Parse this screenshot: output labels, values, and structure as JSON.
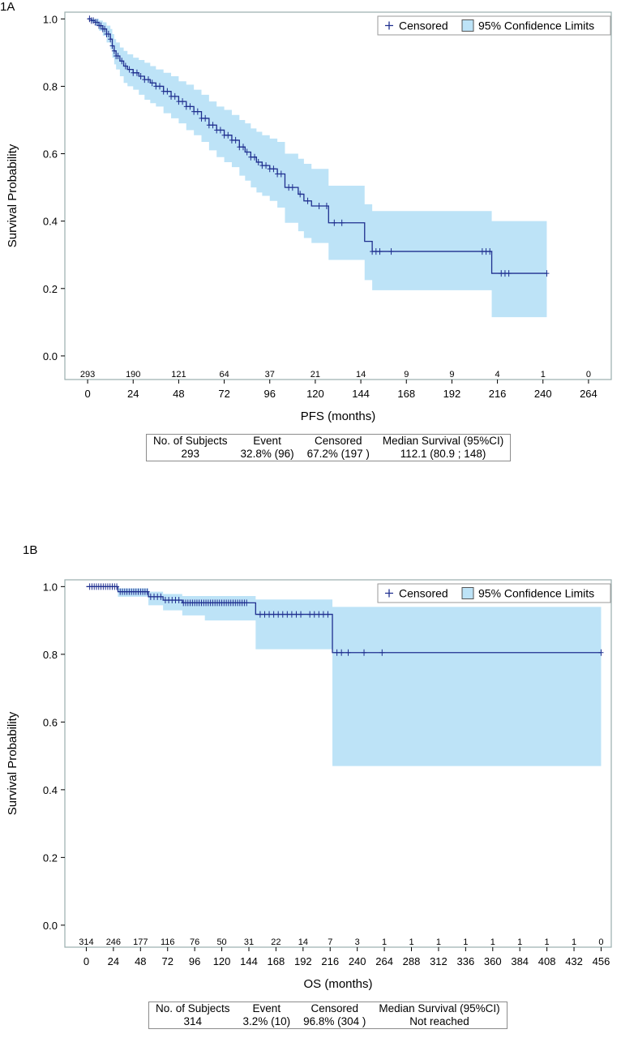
{
  "chart_data": [
    {
      "panel_label": "1A",
      "type": "line",
      "subtype": "kaplan-meier",
      "xlabel": "PFS (months)",
      "ylabel": "Survival Probability",
      "xlim": [
        -12,
        276
      ],
      "ylim": [
        -0.07,
        1.02
      ],
      "xticks": [
        0,
        24,
        48,
        72,
        96,
        120,
        144,
        168,
        192,
        216,
        240,
        264
      ],
      "yticks": [
        "0.0",
        "0.2",
        "0.4",
        "0.6",
        "0.8",
        "1.0"
      ],
      "legend": [
        "Censored",
        "95% Confidence Limits"
      ],
      "legend_position": "top-right",
      "colors": {
        "line": "#1f2f8f",
        "band": "#bde3f7",
        "frame": "#9aaeae"
      },
      "at_risk_times": [
        0,
        24,
        48,
        72,
        96,
        120,
        144,
        168,
        192,
        216,
        240,
        264
      ],
      "at_risk": [
        "293",
        "190",
        "121",
        "64",
        "37",
        "21",
        "14",
        "9",
        "9",
        "4",
        "1",
        "0"
      ],
      "survival_steps": [
        [
          0,
          1.0
        ],
        [
          2,
          0.995
        ],
        [
          4,
          0.99
        ],
        [
          6,
          0.98
        ],
        [
          8,
          0.97
        ],
        [
          10,
          0.955
        ],
        [
          12,
          0.94
        ],
        [
          13,
          0.92
        ],
        [
          14,
          0.905
        ],
        [
          15,
          0.89
        ],
        [
          17,
          0.875
        ],
        [
          19,
          0.86
        ],
        [
          21,
          0.85
        ],
        [
          24,
          0.84
        ],
        [
          27,
          0.83
        ],
        [
          30,
          0.82
        ],
        [
          33,
          0.81
        ],
        [
          36,
          0.8
        ],
        [
          40,
          0.785
        ],
        [
          44,
          0.77
        ],
        [
          48,
          0.755
        ],
        [
          52,
          0.74
        ],
        [
          56,
          0.725
        ],
        [
          60,
          0.705
        ],
        [
          64,
          0.685
        ],
        [
          68,
          0.67
        ],
        [
          72,
          0.655
        ],
        [
          76,
          0.64
        ],
        [
          80,
          0.62
        ],
        [
          83,
          0.605
        ],
        [
          86,
          0.59
        ],
        [
          89,
          0.575
        ],
        [
          92,
          0.565
        ],
        [
          96,
          0.555
        ],
        [
          100,
          0.54
        ],
        [
          104,
          0.5
        ],
        [
          111,
          0.48
        ],
        [
          114,
          0.46
        ],
        [
          118,
          0.445
        ],
        [
          127,
          0.395
        ],
        [
          146,
          0.34
        ],
        [
          150,
          0.31
        ],
        [
          213,
          0.245
        ],
        [
          242,
          0.245
        ]
      ],
      "ci_lower": [
        [
          0,
          1.0
        ],
        [
          2,
          0.99
        ],
        [
          4,
          0.98
        ],
        [
          6,
          0.965
        ],
        [
          8,
          0.95
        ],
        [
          10,
          0.93
        ],
        [
          12,
          0.91
        ],
        [
          13,
          0.885
        ],
        [
          14,
          0.865
        ],
        [
          15,
          0.85
        ],
        [
          17,
          0.83
        ],
        [
          19,
          0.81
        ],
        [
          21,
          0.8
        ],
        [
          24,
          0.79
        ],
        [
          27,
          0.775
        ],
        [
          30,
          0.76
        ],
        [
          33,
          0.75
        ],
        [
          36,
          0.74
        ],
        [
          40,
          0.72
        ],
        [
          44,
          0.705
        ],
        [
          48,
          0.69
        ],
        [
          52,
          0.67
        ],
        [
          56,
          0.655
        ],
        [
          60,
          0.635
        ],
        [
          64,
          0.61
        ],
        [
          68,
          0.59
        ],
        [
          72,
          0.575
        ],
        [
          76,
          0.56
        ],
        [
          80,
          0.535
        ],
        [
          83,
          0.52
        ],
        [
          86,
          0.5
        ],
        [
          89,
          0.485
        ],
        [
          92,
          0.475
        ],
        [
          96,
          0.46
        ],
        [
          100,
          0.44
        ],
        [
          104,
          0.395
        ],
        [
          111,
          0.37
        ],
        [
          114,
          0.35
        ],
        [
          118,
          0.335
        ],
        [
          127,
          0.285
        ],
        [
          146,
          0.225
        ],
        [
          150,
          0.195
        ],
        [
          213,
          0.115
        ],
        [
          242,
          0.115
        ]
      ],
      "ci_upper": [
        [
          0,
          1.0
        ],
        [
          2,
          1.0
        ],
        [
          4,
          1.0
        ],
        [
          6,
          0.995
        ],
        [
          8,
          0.99
        ],
        [
          10,
          0.98
        ],
        [
          12,
          0.97
        ],
        [
          13,
          0.955
        ],
        [
          14,
          0.94
        ],
        [
          15,
          0.93
        ],
        [
          17,
          0.915
        ],
        [
          19,
          0.905
        ],
        [
          21,
          0.895
        ],
        [
          24,
          0.885
        ],
        [
          27,
          0.878
        ],
        [
          30,
          0.87
        ],
        [
          33,
          0.86
        ],
        [
          36,
          0.85
        ],
        [
          40,
          0.84
        ],
        [
          44,
          0.83
        ],
        [
          48,
          0.815
        ],
        [
          52,
          0.805
        ],
        [
          56,
          0.79
        ],
        [
          60,
          0.775
        ],
        [
          64,
          0.755
        ],
        [
          68,
          0.74
        ],
        [
          72,
          0.73
        ],
        [
          76,
          0.715
        ],
        [
          80,
          0.7
        ],
        [
          83,
          0.69
        ],
        [
          86,
          0.675
        ],
        [
          89,
          0.665
        ],
        [
          92,
          0.655
        ],
        [
          96,
          0.645
        ],
        [
          100,
          0.635
        ],
        [
          104,
          0.6
        ],
        [
          111,
          0.585
        ],
        [
          114,
          0.57
        ],
        [
          118,
          0.555
        ],
        [
          127,
          0.505
        ],
        [
          146,
          0.45
        ],
        [
          150,
          0.43
        ],
        [
          213,
          0.4
        ],
        [
          242,
          0.4
        ]
      ],
      "censor_times": [
        1,
        2,
        3,
        4,
        5,
        6,
        7,
        8,
        9,
        10,
        11,
        12,
        13,
        14,
        15,
        16,
        18,
        20,
        22,
        24,
        26,
        28,
        30,
        32,
        34,
        36,
        38,
        40,
        42,
        44,
        46,
        48,
        50,
        52,
        54,
        56,
        58,
        60,
        62,
        64,
        66,
        68,
        70,
        72,
        74,
        76,
        78,
        80,
        82,
        84,
        86,
        88,
        90,
        92,
        94,
        96,
        98,
        100,
        102,
        106,
        108,
        112,
        116,
        122,
        126,
        130,
        134,
        150,
        152,
        154,
        160,
        208,
        210,
        212,
        218,
        220,
        222,
        242
      ],
      "table": {
        "headers": [
          "No. of Subjects",
          "Event",
          "Censored",
          "Median Survival (95%CI)"
        ],
        "values": [
          "293",
          "32.8% (96)",
          "67.2% (197 )",
          "112.1 (80.9 ; 148)"
        ]
      }
    },
    {
      "panel_label": "1B",
      "type": "line",
      "subtype": "kaplan-meier",
      "xlabel": "OS (months)",
      "ylabel": "Survival Probability",
      "xlim": [
        -19,
        465
      ],
      "ylim": [
        -0.065,
        1.02
      ],
      "xticks": [
        0,
        24,
        48,
        72,
        96,
        120,
        144,
        168,
        192,
        216,
        240,
        264,
        288,
        312,
        336,
        360,
        384,
        408,
        432,
        456
      ],
      "yticks": [
        "0.0",
        "0.2",
        "0.4",
        "0.6",
        "0.8",
        "1.0"
      ],
      "legend": [
        "Censored",
        "95% Confidence Limits"
      ],
      "legend_position": "top-right",
      "colors": {
        "line": "#1f2f8f",
        "band": "#bde3f7",
        "frame": "#9aaeae"
      },
      "at_risk_times": [
        0,
        24,
        48,
        72,
        96,
        120,
        144,
        168,
        192,
        216,
        240,
        264,
        288,
        312,
        336,
        360,
        384,
        408,
        432,
        456
      ],
      "at_risk": [
        "314",
        "246",
        "177",
        "116",
        "76",
        "50",
        "31",
        "22",
        "14",
        "7",
        "3",
        "1",
        "1",
        "1",
        "1",
        "1",
        "1",
        "1",
        "1",
        "0"
      ],
      "survival_steps": [
        [
          0,
          1.0
        ],
        [
          28,
          0.985
        ],
        [
          55,
          0.97
        ],
        [
          68,
          0.96
        ],
        [
          85,
          0.952
        ],
        [
          150,
          0.918
        ],
        [
          218,
          0.805
        ],
        [
          456,
          0.805
        ]
      ],
      "ci_lower": [
        [
          0,
          1.0
        ],
        [
          28,
          0.97
        ],
        [
          55,
          0.945
        ],
        [
          68,
          0.93
        ],
        [
          85,
          0.915
        ],
        [
          105,
          0.9
        ],
        [
          150,
          0.815
        ],
        [
          218,
          0.47
        ],
        [
          456,
          0.47
        ]
      ],
      "ci_upper": [
        [
          0,
          1.0
        ],
        [
          28,
          0.995
        ],
        [
          55,
          0.985
        ],
        [
          68,
          0.978
        ],
        [
          85,
          0.972
        ],
        [
          150,
          0.962
        ],
        [
          218,
          0.94
        ],
        [
          456,
          0.94
        ]
      ],
      "censor_times": [
        3,
        5,
        7,
        9,
        11,
        13,
        15,
        17,
        19,
        21,
        23,
        25,
        27,
        30,
        32,
        34,
        36,
        38,
        40,
        42,
        44,
        46,
        48,
        50,
        52,
        54,
        57,
        60,
        63,
        66,
        70,
        73,
        76,
        79,
        82,
        86,
        88,
        90,
        92,
        94,
        96,
        98,
        100,
        102,
        104,
        106,
        108,
        110,
        112,
        114,
        116,
        118,
        120,
        122,
        124,
        126,
        128,
        130,
        132,
        134,
        136,
        138,
        140,
        142,
        154,
        158,
        162,
        166,
        170,
        174,
        178,
        182,
        186,
        190,
        198,
        202,
        206,
        210,
        214,
        222,
        226,
        232,
        246,
        262,
        456
      ],
      "table": {
        "headers": [
          "No. of Subjects",
          "Event",
          "Censored",
          "Median Survival (95%CI)"
        ],
        "values": [
          "314",
          "3.2% (10)",
          "96.8% (304 )",
          "Not reached"
        ]
      }
    }
  ]
}
